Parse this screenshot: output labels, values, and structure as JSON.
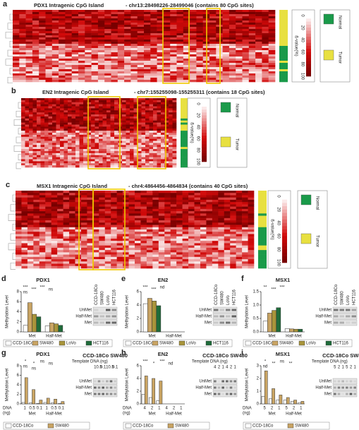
{
  "heatmap_panels": [
    {
      "label": "a",
      "title": "PDX1 Intragenic CpG Island",
      "region": "- chr13:28498226-28499046 (contains 80 CpG sites)"
    },
    {
      "label": "b",
      "title": "EN2 Intragenic CpG Island",
      "region": "- chr7:155255098-155255311 (contains 18 CpG sites)"
    },
    {
      "label": "c",
      "title": "MSX1 Intragenic CpG Island",
      "region": "- chr4:4864456-4864834 (contains 40 CpG sites)"
    }
  ],
  "colorbar": {
    "ticks": [
      0,
      20,
      40,
      60,
      80,
      100
    ],
    "label": "ß-value(%)"
  },
  "legend": {
    "names": [
      "Normal",
      "Tumor"
    ],
    "colors": [
      "#1a9a4a",
      "#e8e040"
    ]
  },
  "chart_data": [
    {
      "type": "bar",
      "panel": "d",
      "title": "PDX1",
      "ylabel": "Methylation Level",
      "categories": [
        "Met",
        "Half-Met"
      ],
      "series": [
        {
          "name": "CCD-18Co",
          "color": "#ffffff",
          "values": [
            1.3,
            1.2
          ]
        },
        {
          "name": "SW480",
          "color": "#c9a463",
          "values": [
            5.8,
            1.8
          ]
        },
        {
          "name": "LoVo",
          "color": "#a8943a",
          "values": [
            3.5,
            1.6
          ]
        },
        {
          "name": "HCT116",
          "color": "#1f6b3a",
          "values": [
            3.0,
            1.3
          ]
        }
      ],
      "ylim": [
        0,
        8
      ],
      "yticks": [
        0,
        2,
        4,
        6,
        8
      ],
      "annotations": [
        "***",
        "***",
        "***",
        "ns",
        "ns"
      ],
      "gel": {
        "lanes": [
          "CCD-18Co",
          "SW480",
          "LoVo",
          "HCT116"
        ],
        "rows": [
          "UnMet",
          "Half-Met",
          "Met"
        ]
      }
    },
    {
      "type": "bar",
      "panel": "e",
      "title": "EN2",
      "ylabel": "Methylation Level",
      "categories": [
        "Met",
        "Half-Met"
      ],
      "series": [
        {
          "name": "CCD-18Co",
          "color": "#ffffff",
          "values": [
            4.2,
            null
          ]
        },
        {
          "name": "SW480",
          "color": "#c9a463",
          "values": [
            5.0,
            null
          ]
        },
        {
          "name": "LoVo",
          "color": "#a8943a",
          "values": [
            4.6,
            null
          ]
        },
        {
          "name": "HCT116",
          "color": "#1f6b3a",
          "values": [
            3.9,
            null
          ]
        }
      ],
      "ylim": [
        0,
        6
      ],
      "yticks": [
        0,
        2,
        4,
        6
      ],
      "annotations": [
        "***",
        "***",
        "nd"
      ],
      "gel": {
        "lanes": [
          "CCD-18Co",
          "SW480",
          "LoVo",
          "HCT116"
        ],
        "rows": [
          "UnMet",
          "Half-Met",
          "Met"
        ]
      }
    },
    {
      "type": "bar",
      "panel": "f",
      "title": "MSX1",
      "ylabel": "Methylation Level",
      "categories": [
        "Met",
        "Half-Met"
      ],
      "series": [
        {
          "name": "CCD-18Co",
          "color": "#ffffff",
          "values": [
            0.4,
            0.12
          ]
        },
        {
          "name": "SW480",
          "color": "#c9a463",
          "values": [
            0.7,
            0.11
          ]
        },
        {
          "name": "LoVo",
          "color": "#a8943a",
          "values": [
            0.8,
            0.1
          ]
        },
        {
          "name": "HCT116",
          "color": "#1f6b3a",
          "values": [
            0.9,
            0.1
          ]
        }
      ],
      "ylim": [
        0,
        1.5
      ],
      "yticks": [
        {
          "value": 0,
          "label": "0.0"
        },
        {
          "value": 0.5,
          "label": "0.5"
        },
        {
          "value": 1,
          "label": "1.0"
        },
        {
          "value": 1.5,
          "label": "1.5"
        }
      ],
      "annotations": [
        "**",
        "***",
        "***"
      ],
      "gel": {
        "lanes": [
          "CCD-18Co",
          "SW480",
          "LoVo",
          "HCT116"
        ],
        "rows": [
          "UnMet",
          "Half-Met",
          "Met"
        ]
      }
    },
    {
      "type": "bar",
      "panel": "g",
      "title": "PDX1",
      "ylabel": "Methylation Level",
      "xlabel": "DNA",
      "xunit": "(ng)",
      "groups": [
        "Met",
        "Half-Met"
      ],
      "categories": [
        "1",
        "0.5",
        "0.1",
        "1",
        "0.5",
        "0.1"
      ],
      "series": [
        {
          "name": "CCD-18Co",
          "color": "#ffffff",
          "values": [
            0.3,
            0.2,
            0.1,
            0.3,
            0.2,
            0.1
          ]
        },
        {
          "name": "SW480",
          "color": "#c9a463",
          "values": [
            5.5,
            3.0,
            0.8,
            1.2,
            1.0,
            0.5
          ]
        }
      ],
      "ylim": [
        0,
        8
      ],
      "yticks": [
        0,
        2,
        4,
        6,
        8
      ],
      "annotations": [
        "*",
        "*",
        "ns",
        "ns",
        "ns",
        "ns"
      ],
      "gel": {
        "header": "CCD-18Co SW480",
        "template": "Template DNA (ng)",
        "lanes": [
          "1",
          "0.5",
          "0.1",
          "1",
          "0.5",
          "0.1"
        ],
        "rows": [
          "UnMet",
          "Half-Met",
          "Met"
        ]
      }
    },
    {
      "type": "bar",
      "panel": "h",
      "title": "EN2",
      "ylabel": "Methylation Level",
      "xlabel": "DNA",
      "xunit": "(ng)",
      "groups": [
        "Met",
        "Half-Met"
      ],
      "categories": [
        "4",
        "2",
        "1",
        "4",
        "2",
        "1"
      ],
      "series": [
        {
          "name": "CCD-18Co",
          "color": "#ffffff",
          "values": [
            1.5,
            1.0,
            0.5,
            null,
            null,
            null
          ]
        },
        {
          "name": "SW480",
          "color": "#c9a463",
          "values": [
            4.4,
            4.0,
            3.6,
            null,
            null,
            null
          ]
        }
      ],
      "ylim": [
        0,
        6
      ],
      "yticks": [
        0,
        2,
        4,
        6
      ],
      "annotations": [
        "***",
        "*",
        "***",
        "nd"
      ],
      "gel": {
        "header": "CCD-18Co SW480",
        "template": "Template DNA (ng)",
        "lanes": [
          "4",
          "2",
          "1",
          "4",
          "2",
          "1"
        ],
        "rows": [
          "UnMet",
          "Half-Met",
          "Met"
        ]
      }
    },
    {
      "type": "bar",
      "panel": "i",
      "title": "MSX1",
      "ylabel": "Methylation Level",
      "xlabel": "DNA",
      "xunit": "(ng)",
      "groups": [
        "Met",
        "Half-Met"
      ],
      "categories": [
        "5",
        "2",
        "1",
        "5",
        "2",
        "1"
      ],
      "series": [
        {
          "name": "CCD-18Co",
          "color": "#ffffff",
          "values": [
            0.6,
            0.4,
            0.3,
            0.3,
            0.2,
            0.1
          ]
        },
        {
          "name": "SW480",
          "color": "#c9a463",
          "values": [
            2.6,
            1.2,
            0.7,
            0.5,
            0.3,
            0.2
          ]
        }
      ],
      "ylim": [
        0,
        3
      ],
      "yticks": [
        0,
        1,
        2,
        3
      ],
      "annotations": [
        "*",
        "**",
        "ns",
        "**",
        "nd"
      ],
      "gel": {
        "header": "CCD-18Co SW480",
        "template": "Template DNA (ng)",
        "lanes": [
          "5",
          "2",
          "1",
          "5",
          "2",
          "1"
        ],
        "rows": [
          "UnMet",
          "Half-Met",
          "Met"
        ]
      }
    }
  ]
}
